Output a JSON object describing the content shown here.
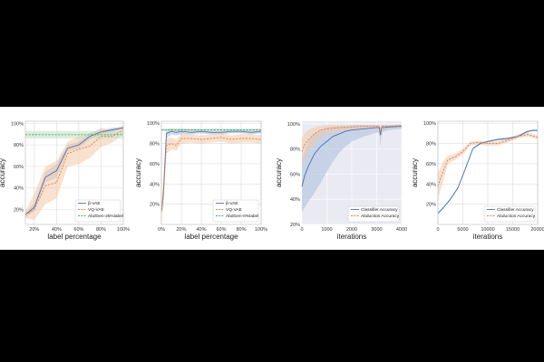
{
  "colors": {
    "blue": "#4c72b0",
    "orange": "#dd8452",
    "green": "#55a868",
    "shade_blue": "#a9bedd",
    "shade_orange": "#f3c8a6",
    "shade_green": "#bfe0c4",
    "plot_bg": "#eaeaf2",
    "grid": "#ffffff"
  },
  "chart_data": [
    {
      "type": "line",
      "title": "",
      "xlabel": "label percentage",
      "ylabel": "accuracy",
      "xlim": [
        12,
        100
      ],
      "ylim": [
        0.06,
        1.02
      ],
      "grid": true,
      "background": "white-with-grey-grid",
      "legend": "lower-right",
      "xticks": [
        20,
        40,
        60,
        80,
        100
      ],
      "xtick_labels": [
        "20%",
        "40%",
        "60%",
        "80%",
        "100%"
      ],
      "yticks": [
        0.2,
        0.4,
        0.6,
        0.8,
        1.0
      ],
      "ytick_labels": [
        "20%",
        "40%",
        "60%",
        "80%",
        "100%"
      ],
      "series": [
        {
          "name": "β-VAE",
          "color_key": "blue",
          "x": [
            12,
            20,
            30,
            40,
            50,
            60,
            70,
            80,
            90,
            100
          ],
          "y": [
            0.15,
            0.22,
            0.5,
            0.56,
            0.77,
            0.8,
            0.88,
            0.92,
            0.94,
            0.96
          ],
          "lower": [
            0.13,
            0.18,
            0.45,
            0.5,
            0.74,
            0.77,
            0.85,
            0.9,
            0.92,
            0.95
          ],
          "upper": [
            0.17,
            0.26,
            0.55,
            0.62,
            0.8,
            0.83,
            0.91,
            0.94,
            0.96,
            0.97
          ]
        },
        {
          "name": "VQ-VAE",
          "color_key": "orange",
          "dash": true,
          "x": [
            12,
            20,
            30,
            40,
            50,
            60,
            70,
            80,
            90,
            100
          ],
          "y": [
            0.15,
            0.2,
            0.42,
            0.45,
            0.72,
            0.76,
            0.79,
            0.88,
            0.88,
            0.94
          ],
          "lower": [
            0.12,
            0.1,
            0.25,
            0.3,
            0.6,
            0.62,
            0.68,
            0.78,
            0.82,
            0.9
          ],
          "upper": [
            0.18,
            0.35,
            0.6,
            0.65,
            0.83,
            0.88,
            0.9,
            0.96,
            0.93,
            0.98
          ]
        },
        {
          "name": "AbdGen-25%label",
          "color_key": "green",
          "dash": true,
          "x": [
            12,
            100
          ],
          "y": [
            0.895,
            0.895
          ],
          "lower": [
            0.86,
            0.86
          ],
          "upper": [
            0.93,
            0.93
          ]
        }
      ]
    },
    {
      "type": "line",
      "title": "",
      "xlabel": "label percentage",
      "ylabel": "accuracy",
      "xlim": [
        0,
        100
      ],
      "ylim": [
        0.0,
        1.02
      ],
      "grid": true,
      "background": "white-with-grey-grid",
      "legend": "lower-right",
      "xticks": [
        0,
        20,
        40,
        60,
        80,
        100
      ],
      "xtick_labels": [
        "0%",
        "20%",
        "40%",
        "60%",
        "80%",
        "100%"
      ],
      "yticks": [
        0.2,
        0.4,
        0.6,
        0.8,
        1.0
      ],
      "ytick_labels": [
        "20%",
        "40%",
        "60%",
        "80%",
        "100%"
      ],
      "series": [
        {
          "name": "β-VAE",
          "color_key": "blue",
          "x": [
            0,
            2,
            5,
            10,
            15,
            20,
            30,
            40,
            50,
            60,
            70,
            80,
            90,
            100
          ],
          "y": [
            0.13,
            0.3,
            0.9,
            0.92,
            0.91,
            0.92,
            0.91,
            0.92,
            0.91,
            0.91,
            0.92,
            0.92,
            0.91,
            0.92
          ],
          "lower": [
            0.1,
            0.2,
            0.85,
            0.89,
            0.88,
            0.89,
            0.89,
            0.9,
            0.89,
            0.89,
            0.9,
            0.9,
            0.89,
            0.9
          ],
          "upper": [
            0.16,
            0.4,
            0.94,
            0.95,
            0.94,
            0.95,
            0.94,
            0.94,
            0.93,
            0.93,
            0.94,
            0.94,
            0.93,
            0.94
          ]
        },
        {
          "name": "VQ-VAE",
          "color_key": "orange",
          "dash": true,
          "x": [
            0,
            2,
            5,
            10,
            15,
            20,
            30,
            40,
            50,
            60,
            70,
            80,
            90,
            100
          ],
          "y": [
            0.13,
            0.3,
            0.78,
            0.8,
            0.78,
            0.85,
            0.85,
            0.84,
            0.85,
            0.86,
            0.84,
            0.85,
            0.85,
            0.84
          ],
          "lower": [
            0.1,
            0.15,
            0.7,
            0.74,
            0.73,
            0.8,
            0.81,
            0.8,
            0.81,
            0.82,
            0.8,
            0.81,
            0.81,
            0.8
          ],
          "upper": [
            0.16,
            0.45,
            0.85,
            0.86,
            0.84,
            0.89,
            0.89,
            0.88,
            0.89,
            0.9,
            0.88,
            0.89,
            0.89,
            0.88
          ]
        },
        {
          "name": "AbdGen-0%label",
          "color_key": "green",
          "dash": true,
          "x": [
            0,
            100
          ],
          "y": [
            0.935,
            0.935
          ],
          "lower": [
            0.92,
            0.92
          ],
          "upper": [
            0.95,
            0.95
          ]
        }
      ]
    },
    {
      "type": "line",
      "title": "",
      "xlabel": "iterations",
      "ylabel": "accuracy",
      "xlim": [
        0,
        4000
      ],
      "ylim": [
        0.2,
        1.02
      ],
      "grid": true,
      "background": "grey-with-white-grid",
      "legend": "lower-right",
      "xticks": [
        0,
        1000,
        2000,
        3000,
        4000
      ],
      "xtick_labels": [
        "0",
        "1000",
        "2000",
        "3000",
        "4000"
      ],
      "yticks": [
        0.2,
        0.4,
        0.6,
        0.8,
        1.0
      ],
      "ytick_labels": [
        "20%",
        "40%",
        "60%",
        "80%",
        "100%"
      ],
      "series": [
        {
          "name": "Classifier Accuracy",
          "color_key": "blue",
          "x": [
            0,
            100,
            250,
            500,
            750,
            1000,
            1250,
            1500,
            1750,
            2000,
            2500,
            3000,
            3100,
            3150,
            3200,
            3300,
            3500,
            4000
          ],
          "y": [
            0.5,
            0.58,
            0.66,
            0.76,
            0.82,
            0.86,
            0.9,
            0.92,
            0.94,
            0.95,
            0.96,
            0.97,
            0.97,
            0.91,
            0.97,
            0.97,
            0.975,
            0.98
          ],
          "lower": [
            0.3,
            0.33,
            0.38,
            0.45,
            0.53,
            0.62,
            0.7,
            0.77,
            0.82,
            0.86,
            0.9,
            0.93,
            0.93,
            0.82,
            0.93,
            0.94,
            0.95,
            0.96
          ],
          "upper": [
            0.72,
            0.78,
            0.85,
            0.92,
            0.95,
            0.97,
            0.98,
            0.98,
            0.985,
            0.99,
            0.99,
            0.99,
            0.99,
            0.97,
            0.99,
            0.99,
            0.99,
            0.99
          ]
        },
        {
          "name": "Abduction Accuracy",
          "color_key": "orange",
          "dash": true,
          "x": [
            0,
            100,
            250,
            500,
            750,
            1000,
            1500,
            2000,
            2500,
            3000,
            3100,
            3150,
            3200,
            3500,
            4000
          ],
          "y": [
            0.78,
            0.83,
            0.87,
            0.92,
            0.95,
            0.96,
            0.97,
            0.975,
            0.98,
            0.98,
            0.98,
            0.93,
            0.98,
            0.98,
            0.985
          ],
          "lower": [
            0.65,
            0.72,
            0.78,
            0.85,
            0.89,
            0.92,
            0.94,
            0.95,
            0.96,
            0.96,
            0.96,
            0.86,
            0.96,
            0.97,
            0.97
          ],
          "upper": [
            0.88,
            0.92,
            0.95,
            0.97,
            0.98,
            0.99,
            0.99,
            0.99,
            0.99,
            0.99,
            0.99,
            0.98,
            0.99,
            0.99,
            0.995
          ]
        }
      ]
    },
    {
      "type": "line",
      "title": "",
      "xlabel": "iterations",
      "ylabel": "accuracy",
      "xlim": [
        0,
        20000
      ],
      "ylim": [
        0.0,
        1.02
      ],
      "grid": true,
      "background": "white-with-grey-grid",
      "legend": "lower-right",
      "xticks": [
        0,
        5000,
        10000,
        15000,
        20000
      ],
      "xtick_labels": [
        "0",
        "5000",
        "10000",
        "15000",
        "20000"
      ],
      "yticks": [
        0.2,
        0.4,
        0.6,
        0.8,
        1.0
      ],
      "ytick_labels": [
        "20%",
        "40%",
        "60%",
        "80%",
        "100%"
      ],
      "series": [
        {
          "name": "Classifier Accuracy",
          "color_key": "blue",
          "x": [
            0,
            1000,
            2500,
            4000,
            5500,
            7000,
            8500,
            10000,
            12000,
            14000,
            16000,
            18000,
            19000,
            20000
          ],
          "y": [
            0.11,
            0.16,
            0.25,
            0.36,
            0.55,
            0.75,
            0.8,
            0.82,
            0.84,
            0.85,
            0.87,
            0.92,
            0.93,
            0.93
          ],
          "lower": [
            0.1,
            0.15,
            0.24,
            0.35,
            0.54,
            0.74,
            0.79,
            0.81,
            0.83,
            0.84,
            0.86,
            0.91,
            0.92,
            0.92
          ],
          "upper": [
            0.12,
            0.17,
            0.26,
            0.37,
            0.56,
            0.76,
            0.81,
            0.83,
            0.85,
            0.86,
            0.88,
            0.93,
            0.94,
            0.94
          ]
        },
        {
          "name": "Abduction Accuracy",
          "color_key": "orange",
          "dash": true,
          "x": [
            0,
            1000,
            2000,
            3500,
            5000,
            6500,
            8000,
            10000,
            12000,
            14000,
            16000,
            18000,
            20000
          ],
          "y": [
            0.38,
            0.52,
            0.64,
            0.67,
            0.72,
            0.8,
            0.81,
            0.8,
            0.8,
            0.83,
            0.87,
            0.89,
            0.86
          ],
          "lower": [
            0.25,
            0.42,
            0.6,
            0.64,
            0.69,
            0.78,
            0.79,
            0.78,
            0.78,
            0.81,
            0.85,
            0.87,
            0.84
          ],
          "upper": [
            0.5,
            0.62,
            0.68,
            0.7,
            0.75,
            0.82,
            0.83,
            0.82,
            0.82,
            0.85,
            0.89,
            0.91,
            0.88
          ]
        }
      ]
    }
  ]
}
